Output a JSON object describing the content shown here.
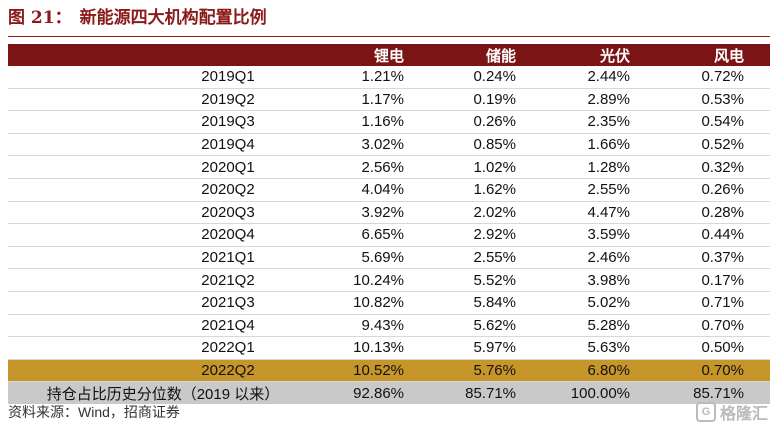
{
  "title": {
    "prefix": "图 21：",
    "text": "新能源四大机构配置比例"
  },
  "table": {
    "columns": [
      "",
      "锂电",
      "储能",
      "光伏",
      "风电"
    ],
    "rows": [
      {
        "q": "2019Q1",
        "v": [
          "1.21%",
          "0.24%",
          "2.44%",
          "0.72%"
        ]
      },
      {
        "q": "2019Q2",
        "v": [
          "1.17%",
          "0.19%",
          "2.89%",
          "0.53%"
        ]
      },
      {
        "q": "2019Q3",
        "v": [
          "1.16%",
          "0.26%",
          "2.35%",
          "0.54%"
        ]
      },
      {
        "q": "2019Q4",
        "v": [
          "3.02%",
          "0.85%",
          "1.66%",
          "0.52%"
        ]
      },
      {
        "q": "2020Q1",
        "v": [
          "2.56%",
          "1.02%",
          "1.28%",
          "0.32%"
        ]
      },
      {
        "q": "2020Q2",
        "v": [
          "4.04%",
          "1.62%",
          "2.55%",
          "0.26%"
        ]
      },
      {
        "q": "2020Q3",
        "v": [
          "3.92%",
          "2.02%",
          "4.47%",
          "0.28%"
        ]
      },
      {
        "q": "2020Q4",
        "v": [
          "6.65%",
          "2.92%",
          "3.59%",
          "0.44%"
        ]
      },
      {
        "q": "2021Q1",
        "v": [
          "5.69%",
          "2.55%",
          "2.46%",
          "0.37%"
        ]
      },
      {
        "q": "2021Q2",
        "v": [
          "10.24%",
          "5.52%",
          "3.98%",
          "0.17%"
        ]
      },
      {
        "q": "2021Q3",
        "v": [
          "10.82%",
          "5.84%",
          "5.02%",
          "0.71%"
        ]
      },
      {
        "q": "2021Q4",
        "v": [
          "9.43%",
          "5.62%",
          "5.28%",
          "0.70%"
        ]
      },
      {
        "q": "2022Q1",
        "v": [
          "10.13%",
          "5.97%",
          "5.63%",
          "0.50%"
        ]
      },
      {
        "q": "2022Q2",
        "v": [
          "10.52%",
          "5.76%",
          "6.80%",
          "0.70%"
        ]
      }
    ],
    "summary": {
      "label": "持仓占比历史分位数（2019 以来）",
      "v": [
        "92.86%",
        "85.71%",
        "100.00%",
        "85.71%"
      ]
    }
  },
  "source": "资料来源：Wind，招商证券",
  "logo": {
    "mark": "G",
    "text": "格隆汇"
  },
  "colors": {
    "accent": "#7b1414",
    "highlight": "#c7962b",
    "summary": "#c9c9c9"
  }
}
